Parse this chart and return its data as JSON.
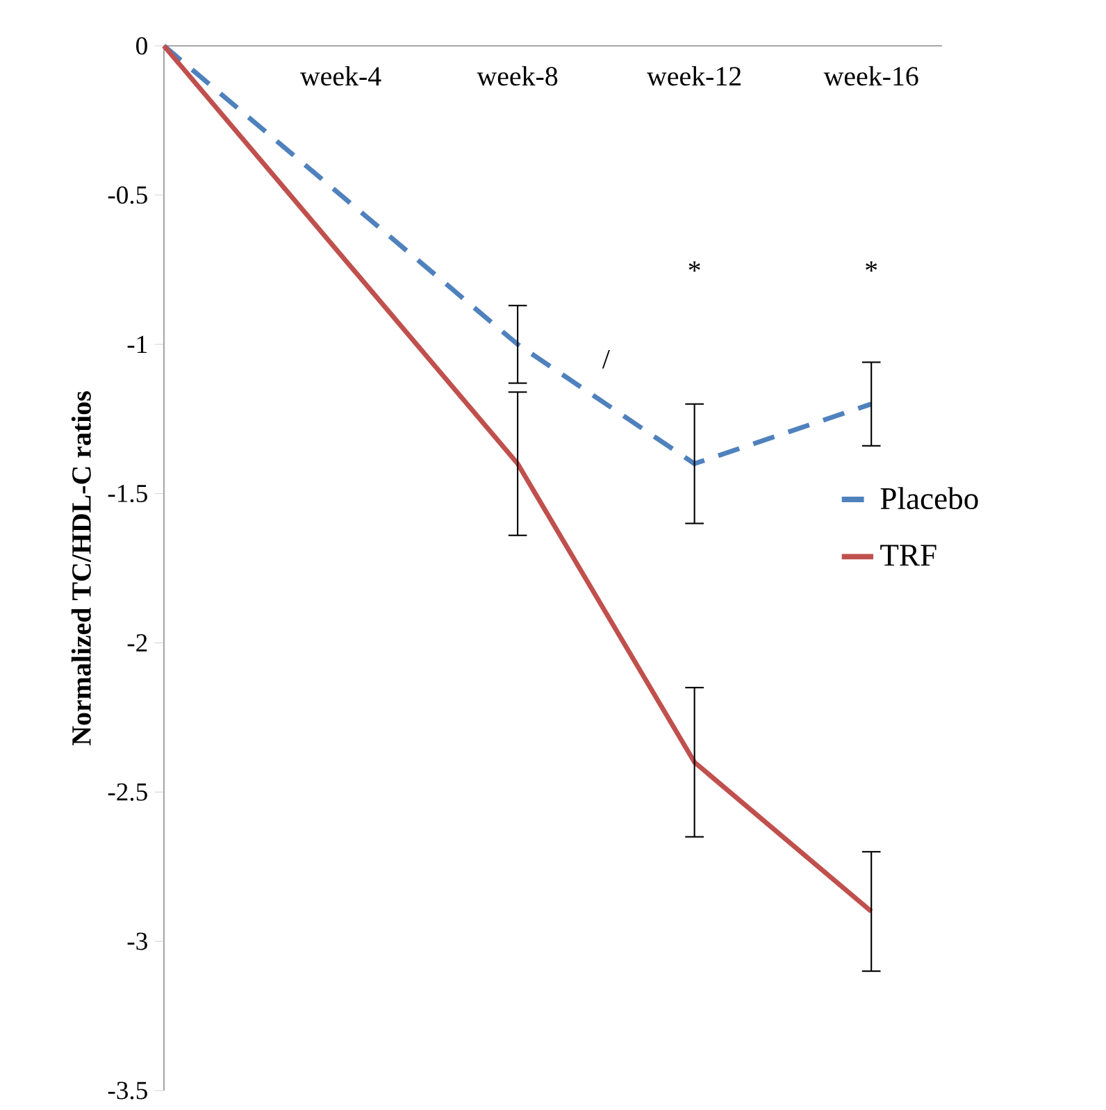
{
  "chart_data": {
    "type": "line",
    "ylabel": "Normalized  TC/HDL-C ratios",
    "categories": [
      null,
      "week-4",
      "week-8",
      "week-12",
      "week-16"
    ],
    "ylim": [
      -3.5,
      0
    ],
    "yticks": [
      0,
      -0.5,
      -1,
      -1.5,
      -2,
      -2.5,
      -3,
      -3.5
    ],
    "grid": false,
    "legend": "right",
    "marker": "none",
    "series": [
      {
        "name": "Placebo",
        "color": "#4f81bd",
        "line_style": "dashed",
        "values": [
          0,
          null,
          -1.0,
          -1.4,
          -1.2
        ],
        "errors": [
          null,
          null,
          0.13,
          0.2,
          0.14
        ]
      },
      {
        "name": "TRF",
        "color": "#c0504d",
        "line_style": "solid",
        "values": [
          0,
          null,
          -1.4,
          -2.4,
          -2.9
        ],
        "errors": [
          null,
          null,
          0.24,
          0.25,
          0.2
        ]
      }
    ],
    "annotations": [
      "*",
      "*",
      "/"
    ]
  }
}
